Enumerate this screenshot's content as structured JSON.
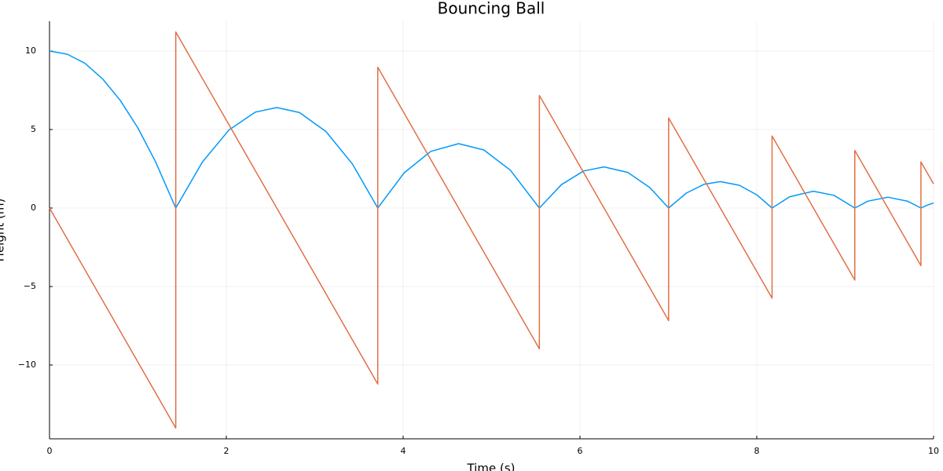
{
  "chart_data": {
    "type": "line",
    "title": "Bouncing Ball",
    "xlabel": "Time (s)",
    "ylabel": "Height (m)",
    "xlim": [
      0,
      10
    ],
    "ylim": [
      -14.7,
      11.9
    ],
    "xticks": [
      0,
      2,
      4,
      6,
      8,
      10
    ],
    "yticks": [
      {
        "value": -10,
        "label": "−10"
      },
      {
        "value": -5,
        "label": "−5"
      },
      0,
      5,
      10
    ],
    "grid": true,
    "series": [
      {
        "color": "#009af9",
        "x": [
          0,
          0.2,
          0.4,
          0.6,
          0.8,
          1.0,
          1.2,
          1.428,
          1.728,
          2.028,
          2.328,
          2.571,
          2.828,
          3.128,
          3.428,
          3.713,
          4.013,
          4.313,
          4.627,
          4.913,
          5.213,
          5.541,
          5.791,
          6.041,
          6.272,
          6.541,
          6.791,
          7.003,
          7.203,
          7.403,
          7.588,
          7.803,
          8.003,
          8.173,
          8.373,
          8.641,
          8.873,
          9.109,
          9.259,
          9.483,
          9.709,
          9.857,
          9.927,
          10
        ],
        "values": [
          10,
          9.8,
          9.22,
          8.23,
          6.86,
          5.1,
          2.94,
          0,
          2.92,
          4.96,
          6.11,
          6.4,
          6.08,
          4.87,
          2.79,
          0,
          2.25,
          3.61,
          4.1,
          3.7,
          2.41,
          0,
          1.49,
          2.36,
          2.62,
          2.27,
          1.3,
          0,
          0.95,
          1.51,
          1.68,
          1.45,
          0.83,
          0,
          0.72,
          1.07,
          0.81,
          0,
          0.44,
          0.69,
          0.43,
          0,
          0.18,
          0.32
        ]
      },
      {
        "color": "#e26f46",
        "x": [
          0,
          1.428,
          1.428,
          3.713,
          3.713,
          5.541,
          5.541,
          7.003,
          7.003,
          8.173,
          8.173,
          9.109,
          9.109,
          9.857,
          9.857,
          10
        ],
        "values": [
          0,
          -14.01,
          11.21,
          -11.21,
          8.97,
          -8.97,
          7.17,
          -7.17,
          5.74,
          -5.74,
          4.59,
          -4.59,
          3.67,
          -3.67,
          2.94,
          1.54
        ]
      }
    ]
  }
}
